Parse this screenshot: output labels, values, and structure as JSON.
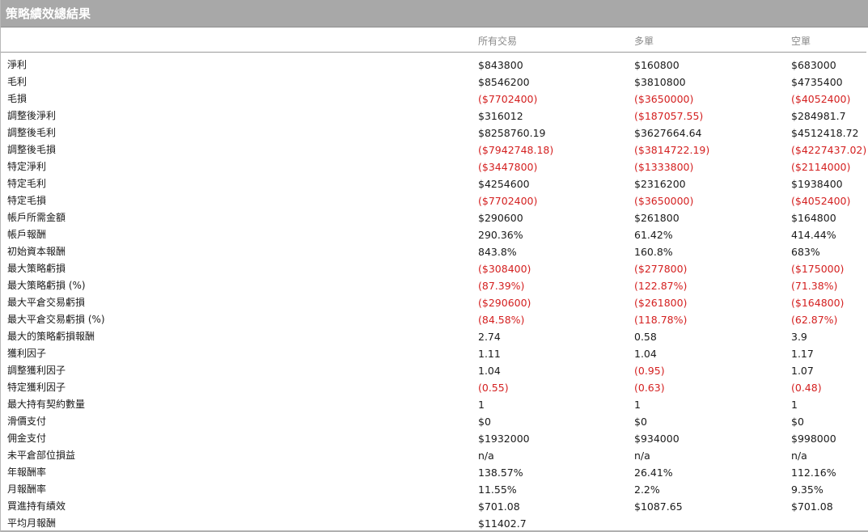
{
  "title": "策略績效總結果",
  "columns": [
    "所有交易",
    "多單",
    "空單"
  ],
  "rows": [
    {
      "label": "淨利",
      "values": [
        "$843800",
        "$160800",
        "$683000"
      ],
      "neg": [
        false,
        false,
        false
      ]
    },
    {
      "label": "毛利",
      "values": [
        "$8546200",
        "$3810800",
        "$4735400"
      ],
      "neg": [
        false,
        false,
        false
      ]
    },
    {
      "label": "毛損",
      "values": [
        "($7702400)",
        "($3650000)",
        "($4052400)"
      ],
      "neg": [
        true,
        true,
        true
      ]
    },
    {
      "label": "調整後淨利",
      "values": [
        "$316012",
        "($187057.55)",
        "$284981.7"
      ],
      "neg": [
        false,
        true,
        false
      ]
    },
    {
      "label": "調整後毛利",
      "values": [
        "$8258760.19",
        "$3627664.64",
        "$4512418.72"
      ],
      "neg": [
        false,
        false,
        false
      ]
    },
    {
      "label": "調整後毛損",
      "values": [
        "($7942748.18)",
        "($3814722.19)",
        "($4227437.02)"
      ],
      "neg": [
        true,
        true,
        true
      ]
    },
    {
      "label": "特定淨利",
      "values": [
        "($3447800)",
        "($1333800)",
        "($2114000)"
      ],
      "neg": [
        true,
        true,
        true
      ]
    },
    {
      "label": "特定毛利",
      "values": [
        "$4254600",
        "$2316200",
        "$1938400"
      ],
      "neg": [
        false,
        false,
        false
      ]
    },
    {
      "label": "特定毛損",
      "values": [
        "($7702400)",
        "($3650000)",
        "($4052400)"
      ],
      "neg": [
        true,
        true,
        true
      ]
    },
    {
      "label": "帳戶所需金額",
      "values": [
        "$290600",
        "$261800",
        "$164800"
      ],
      "neg": [
        false,
        false,
        false
      ]
    },
    {
      "label": "帳戶報酬",
      "values": [
        "290.36%",
        "61.42%",
        "414.44%"
      ],
      "neg": [
        false,
        false,
        false
      ]
    },
    {
      "label": "初始資本報酬",
      "values": [
        "843.8%",
        "160.8%",
        "683%"
      ],
      "neg": [
        false,
        false,
        false
      ]
    },
    {
      "label": "最大策略虧損",
      "values": [
        "($308400)",
        "($277800)",
        "($175000)"
      ],
      "neg": [
        true,
        true,
        true
      ]
    },
    {
      "label": "最大策略虧損 (%)",
      "values": [
        "(87.39%)",
        "(122.87%)",
        "(71.38%)"
      ],
      "neg": [
        true,
        true,
        true
      ]
    },
    {
      "label": "最大平倉交易虧損",
      "values": [
        "($290600)",
        "($261800)",
        "($164800)"
      ],
      "neg": [
        true,
        true,
        true
      ]
    },
    {
      "label": "最大平倉交易虧損 (%)",
      "values": [
        "(84.58%)",
        "(118.78%)",
        "(62.87%)"
      ],
      "neg": [
        true,
        true,
        true
      ]
    },
    {
      "label": "最大的策略虧損報酬",
      "values": [
        "2.74",
        "0.58",
        "3.9"
      ],
      "neg": [
        false,
        false,
        false
      ]
    },
    {
      "label": "獲利因子",
      "values": [
        "1.11",
        "1.04",
        "1.17"
      ],
      "neg": [
        false,
        false,
        false
      ]
    },
    {
      "label": "調整獲利因子",
      "values": [
        "1.04",
        "(0.95)",
        "1.07"
      ],
      "neg": [
        false,
        true,
        false
      ]
    },
    {
      "label": "特定獲利因子",
      "values": [
        "(0.55)",
        "(0.63)",
        "(0.48)"
      ],
      "neg": [
        true,
        true,
        true
      ]
    },
    {
      "label": "最大持有契約數量",
      "values": [
        "1",
        "1",
        "1"
      ],
      "neg": [
        false,
        false,
        false
      ]
    },
    {
      "label": "滑價支付",
      "values": [
        "$0",
        "$0",
        "$0"
      ],
      "neg": [
        false,
        false,
        false
      ]
    },
    {
      "label": "佣金支付",
      "values": [
        "$1932000",
        "$934000",
        "$998000"
      ],
      "neg": [
        false,
        false,
        false
      ]
    },
    {
      "label": "未平倉部位損益",
      "values": [
        "n/a",
        "n/a",
        "n/a"
      ],
      "neg": [
        false,
        false,
        false
      ]
    },
    {
      "label": "年報酬率",
      "values": [
        "138.57%",
        "26.41%",
        "112.16%"
      ],
      "neg": [
        false,
        false,
        false
      ]
    },
    {
      "label": "月報酬率",
      "values": [
        "11.55%",
        "2.2%",
        "9.35%"
      ],
      "neg": [
        false,
        false,
        false
      ]
    },
    {
      "label": "買進持有績效",
      "values": [
        "$701.08",
        "$1087.65",
        "$701.08"
      ],
      "neg": [
        false,
        false,
        false
      ]
    },
    {
      "label": "平均月報酬",
      "values": [
        "$11402.7",
        "",
        ""
      ],
      "neg": [
        false,
        false,
        false
      ]
    }
  ],
  "colors": {
    "title_bg": "#a8a8a8",
    "negative": "#d42020",
    "header_text": "#8a8a8a"
  }
}
